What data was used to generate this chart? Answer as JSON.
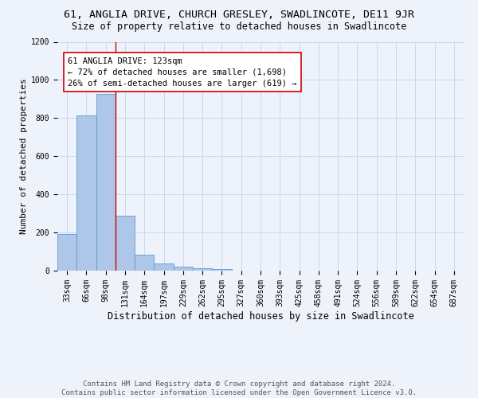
{
  "title1": "61, ANGLIA DRIVE, CHURCH GRESLEY, SWADLINCOTE, DE11 9JR",
  "title2": "Size of property relative to detached houses in Swadlincote",
  "xlabel": "Distribution of detached houses by size in Swadlincote",
  "ylabel": "Number of detached properties",
  "bar_labels": [
    "33sqm",
    "66sqm",
    "98sqm",
    "131sqm",
    "164sqm",
    "197sqm",
    "229sqm",
    "262sqm",
    "295sqm",
    "327sqm",
    "360sqm",
    "393sqm",
    "425sqm",
    "458sqm",
    "491sqm",
    "524sqm",
    "556sqm",
    "589sqm",
    "622sqm",
    "654sqm",
    "687sqm"
  ],
  "bar_values": [
    190,
    815,
    925,
    290,
    82,
    38,
    20,
    13,
    9,
    0,
    0,
    0,
    0,
    0,
    0,
    0,
    0,
    0,
    0,
    0,
    0
  ],
  "bar_color": "#aec6e8",
  "bar_edge_color": "#5b9bd5",
  "vline_x": 2.5,
  "vline_color": "#cc0000",
  "annotation_text": "61 ANGLIA DRIVE: 123sqm\n← 72% of detached houses are smaller (1,698)\n26% of semi-detached houses are larger (619) →",
  "annotation_box_color": "#ffffff",
  "annotation_box_edge": "#cc0000",
  "ylim": [
    0,
    1200
  ],
  "yticks": [
    0,
    200,
    400,
    600,
    800,
    1000,
    1200
  ],
  "footnote": "Contains HM Land Registry data © Crown copyright and database right 2024.\nContains public sector information licensed under the Open Government Licence v3.0.",
  "bg_color": "#eef3fb",
  "grid_color": "#c8d8f0",
  "title1_fontsize": 9.5,
  "title2_fontsize": 8.5,
  "xlabel_fontsize": 8.5,
  "ylabel_fontsize": 8,
  "tick_fontsize": 7,
  "footnote_fontsize": 6.5,
  "annot_fontsize": 7.5
}
